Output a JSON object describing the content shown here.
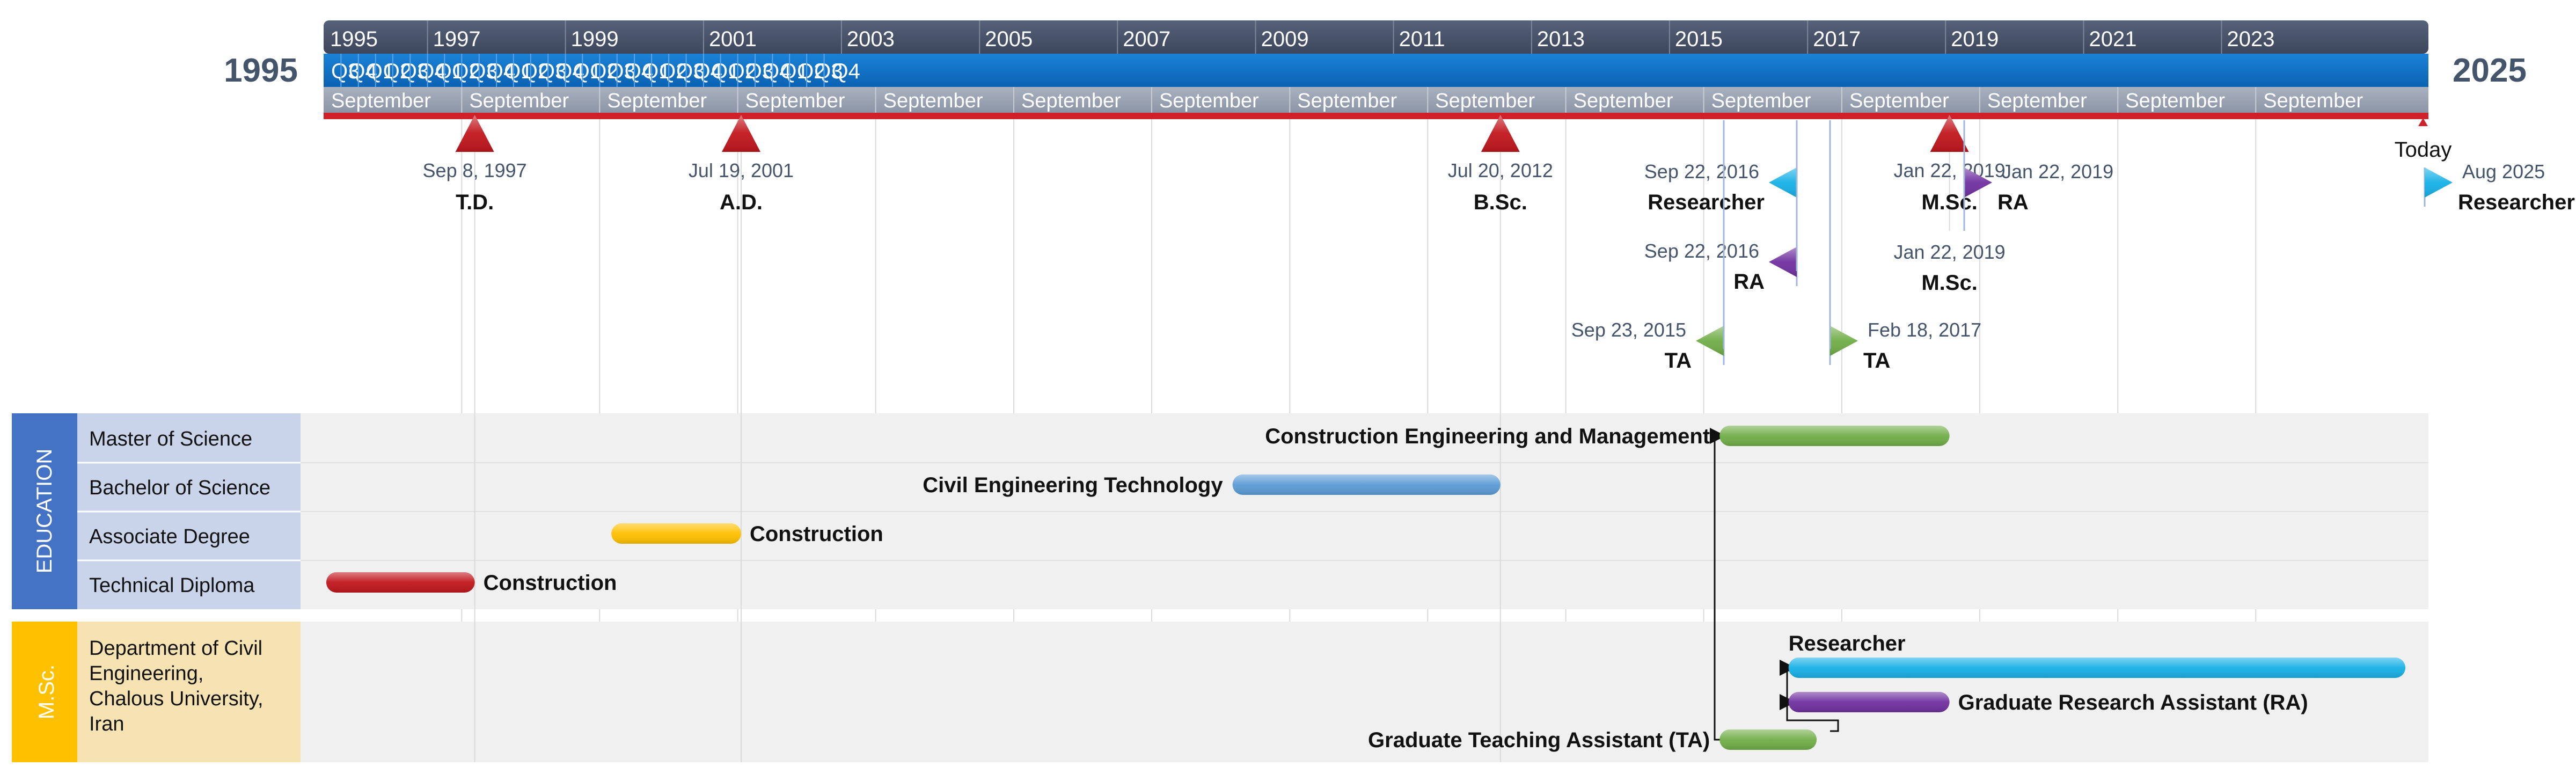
{
  "timeline": {
    "start_label": "1995",
    "end_label": "2025",
    "start_date": "1995-07-01",
    "end_date": "2025-12-31",
    "year_ticks": [
      "1995",
      "1997",
      "1999",
      "2001",
      "2003",
      "2005",
      "2007",
      "2009",
      "2011",
      "2013",
      "2015",
      "2017",
      "2019",
      "2021",
      "2023"
    ],
    "quarter_ticks": [
      "Q3",
      "Q4",
      "Q1",
      "Q2",
      "Q3",
      "Q4",
      "Q1",
      "Q2",
      "Q3",
      "Q4",
      "Q1",
      "Q2",
      "Q3",
      "Q4",
      "Q1",
      "Q2",
      "Q3",
      "Q4",
      "Q1",
      "Q2",
      "Q3",
      "Q4",
      "Q1",
      "Q2",
      "Q3",
      "Q4",
      "Q1",
      "Q2",
      "Q3",
      "Q4"
    ],
    "month_ticks": [
      "September",
      "September",
      "September",
      "September",
      "September",
      "September",
      "September",
      "September",
      "September",
      "September",
      "September",
      "September",
      "September",
      "September",
      "September"
    ],
    "today_label": "Today"
  },
  "milestones": [
    {
      "date": "Sep 8, 1997",
      "label": "T.D.",
      "shape": "triangle",
      "color": "#c0161c"
    },
    {
      "date": "Jul 19, 2001",
      "label": "A.D.",
      "shape": "triangle",
      "color": "#c0161c"
    },
    {
      "date": "Jul 20, 2012",
      "label": "B.Sc.",
      "shape": "triangle",
      "color": "#c0161c"
    },
    {
      "date": "Jan 22, 2019",
      "label": "M.Sc.",
      "shape": "triangle",
      "color": "#c0161c"
    },
    {
      "date": "Sep 22, 2016",
      "label": "Researcher",
      "shape": "flag-left",
      "color": "#17b0e6"
    },
    {
      "date": "Sep 22, 2016",
      "label": "RA",
      "shape": "flag-left",
      "color": "#7030a0"
    },
    {
      "date": "Sep 23, 2015",
      "label": "TA",
      "shape": "flag-left",
      "color": "#70ad47"
    },
    {
      "date": "Feb 18, 2017",
      "label": "TA",
      "shape": "flag-right",
      "color": "#70ad47"
    },
    {
      "date": "Jan 22, 2019",
      "label": "RA",
      "shape": "flag-right",
      "color": "#7030a0"
    },
    {
      "date": "Aug 2025",
      "label": "Researcher",
      "shape": "flag-right",
      "color": "#17b0e6"
    }
  ],
  "swimlanes": [
    {
      "title": "EDUCATION",
      "color": "#4472c4",
      "rows": [
        {
          "label": "Master of Science",
          "task": "Construction Engineering and Management",
          "color": "#70ad47"
        },
        {
          "label": "Bachelor of Science",
          "task": "Civil Engineering Technology",
          "color": "#5b9bd5"
        },
        {
          "label": "Associate Degree",
          "task": "Construction",
          "color": "#ffc000"
        },
        {
          "label": "Technical Diploma",
          "task": "Construction",
          "color": "#c0161c"
        }
      ]
    },
    {
      "title": "M.Sc.",
      "color": "#ffc000",
      "rows": [
        {
          "label": "Department of Civil Engineering, Chalous University, Iran",
          "task": "",
          "color": ""
        }
      ],
      "tasks": [
        {
          "task": "Researcher",
          "color": "#17b0e6"
        },
        {
          "task": "Graduate Research Assistant (RA)",
          "color": "#7030a0"
        },
        {
          "task": "Graduate Teaching Assistant (TA)",
          "color": "#70ad47"
        }
      ]
    }
  ]
}
